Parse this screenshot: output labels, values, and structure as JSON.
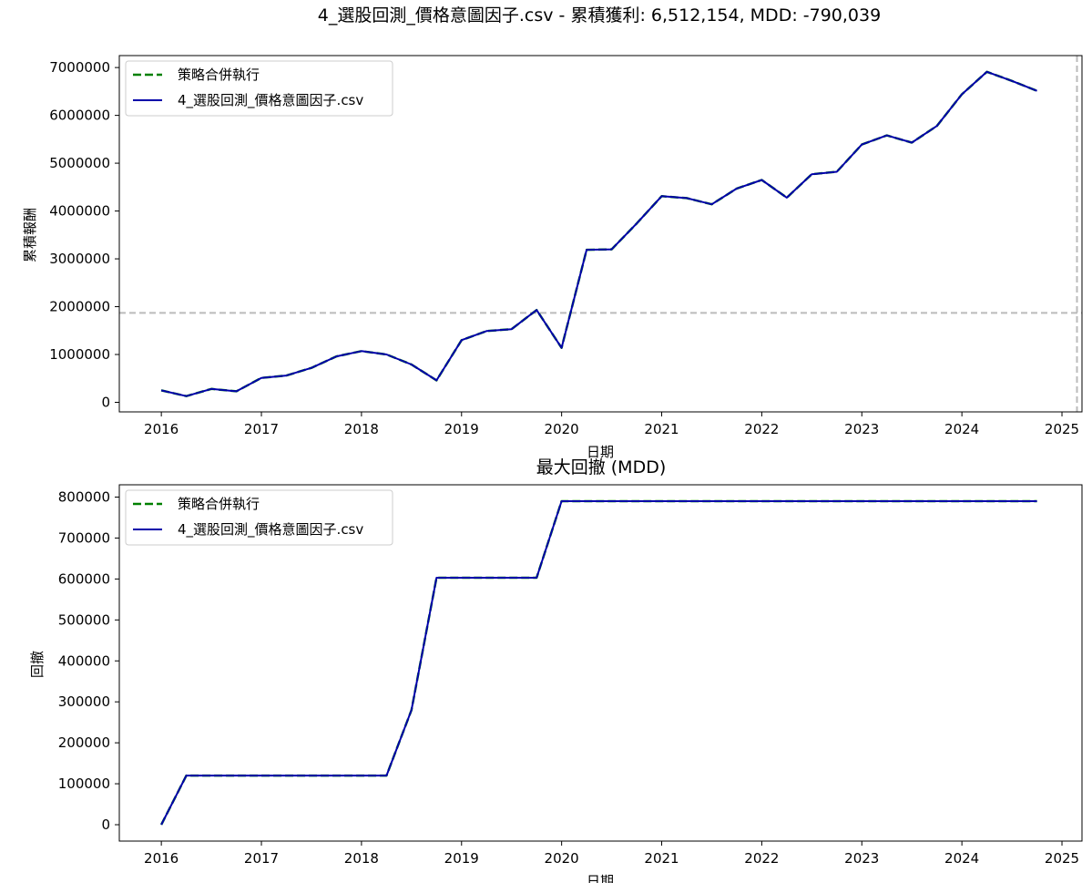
{
  "figure_title": "4_選股回測_價格意圖因子.csv - 累積獲利: 6,512,154, MDD: -790,039",
  "colors": {
    "combined": "#008000",
    "single": "#0000aa",
    "reference": "#bbbbbb",
    "axes": "#000000"
  },
  "chart_data": [
    {
      "type": "line",
      "title": "",
      "xlabel": "日期",
      "ylabel": "累積報酬",
      "xlim": [
        2015.58,
        2025.2
      ],
      "ylim": [
        -200000,
        7250000
      ],
      "xticks": [
        "2016",
        "2017",
        "2018",
        "2019",
        "2020",
        "2021",
        "2022",
        "2023",
        "2024",
        "2025"
      ],
      "yticks": [
        "0",
        "1000000",
        "2000000",
        "3000000",
        "4000000",
        "5000000",
        "6000000",
        "7000000"
      ],
      "grid": false,
      "legend_location": "top-left",
      "reference_lines": {
        "horizontal_y": 1870000,
        "vertical_x": 2025.15
      },
      "x": [
        2016.0,
        2016.25,
        2016.5,
        2016.75,
        2017.0,
        2017.25,
        2017.5,
        2017.75,
        2018.0,
        2018.25,
        2018.5,
        2018.75,
        2019.0,
        2019.25,
        2019.5,
        2019.75,
        2020.0,
        2020.25,
        2020.5,
        2020.75,
        2021.0,
        2021.25,
        2021.5,
        2021.75,
        2022.0,
        2022.25,
        2022.5,
        2022.75,
        2023.0,
        2023.25,
        2023.5,
        2023.75,
        2024.0,
        2024.25,
        2024.5,
        2024.75
      ],
      "series": [
        {
          "name": "策略合併執行",
          "style": "dashed",
          "values": [
            250000,
            130000,
            280000,
            230000,
            510000,
            560000,
            720000,
            960000,
            1070000,
            1000000,
            790000,
            460000,
            1300000,
            1490000,
            1530000,
            1930000,
            1140000,
            3190000,
            3200000,
            3740000,
            4310000,
            4270000,
            4140000,
            4470000,
            4650000,
            4280000,
            4770000,
            4820000,
            5390000,
            5580000,
            5430000,
            5780000,
            6440000,
            6910000,
            6720000,
            6512154
          ]
        },
        {
          "name": "4_選股回測_價格意圖因子.csv",
          "style": "solid",
          "values": [
            250000,
            130000,
            280000,
            230000,
            510000,
            560000,
            720000,
            960000,
            1070000,
            1000000,
            790000,
            460000,
            1300000,
            1490000,
            1530000,
            1930000,
            1140000,
            3190000,
            3200000,
            3740000,
            4310000,
            4270000,
            4140000,
            4470000,
            4650000,
            4280000,
            4770000,
            4820000,
            5390000,
            5580000,
            5430000,
            5780000,
            6440000,
            6910000,
            6720000,
            6512154
          ]
        }
      ]
    },
    {
      "type": "line",
      "title": "最大回撤 (MDD)",
      "xlabel": "日期",
      "ylabel": "回撤",
      "xlim": [
        2015.58,
        2025.2
      ],
      "ylim": [
        -40000,
        830000
      ],
      "xticks": [
        "2016",
        "2017",
        "2018",
        "2019",
        "2020",
        "2021",
        "2022",
        "2023",
        "2024",
        "2025"
      ],
      "yticks": [
        "0",
        "100000",
        "200000",
        "300000",
        "400000",
        "500000",
        "600000",
        "700000",
        "800000"
      ],
      "grid": false,
      "legend_location": "top-left",
      "x": [
        2016.0,
        2016.25,
        2016.5,
        2016.75,
        2017.0,
        2017.25,
        2017.5,
        2017.75,
        2018.0,
        2018.25,
        2018.5,
        2018.75,
        2019.0,
        2019.25,
        2019.5,
        2019.75,
        2020.0,
        2020.25,
        2020.5,
        2020.75,
        2021.0,
        2021.25,
        2021.5,
        2021.75,
        2022.0,
        2022.25,
        2022.5,
        2022.75,
        2023.0,
        2023.25,
        2023.5,
        2023.75,
        2024.0,
        2024.25,
        2024.5,
        2024.75
      ],
      "series": [
        {
          "name": "策略合併執行",
          "style": "dashed",
          "values": [
            0,
            120000,
            120000,
            120000,
            120000,
            120000,
            120000,
            120000,
            120000,
            120000,
            280000,
            603000,
            603000,
            603000,
            603000,
            603000,
            790039,
            790039,
            790039,
            790039,
            790039,
            790039,
            790039,
            790039,
            790039,
            790039,
            790039,
            790039,
            790039,
            790039,
            790039,
            790039,
            790039,
            790039,
            790039,
            790039
          ]
        },
        {
          "name": "4_選股回測_價格意圖因子.csv",
          "style": "solid",
          "values": [
            0,
            120000,
            120000,
            120000,
            120000,
            120000,
            120000,
            120000,
            120000,
            120000,
            280000,
            603000,
            603000,
            603000,
            603000,
            603000,
            790039,
            790039,
            790039,
            790039,
            790039,
            790039,
            790039,
            790039,
            790039,
            790039,
            790039,
            790039,
            790039,
            790039,
            790039,
            790039,
            790039,
            790039,
            790039,
            790039
          ]
        }
      ]
    }
  ]
}
